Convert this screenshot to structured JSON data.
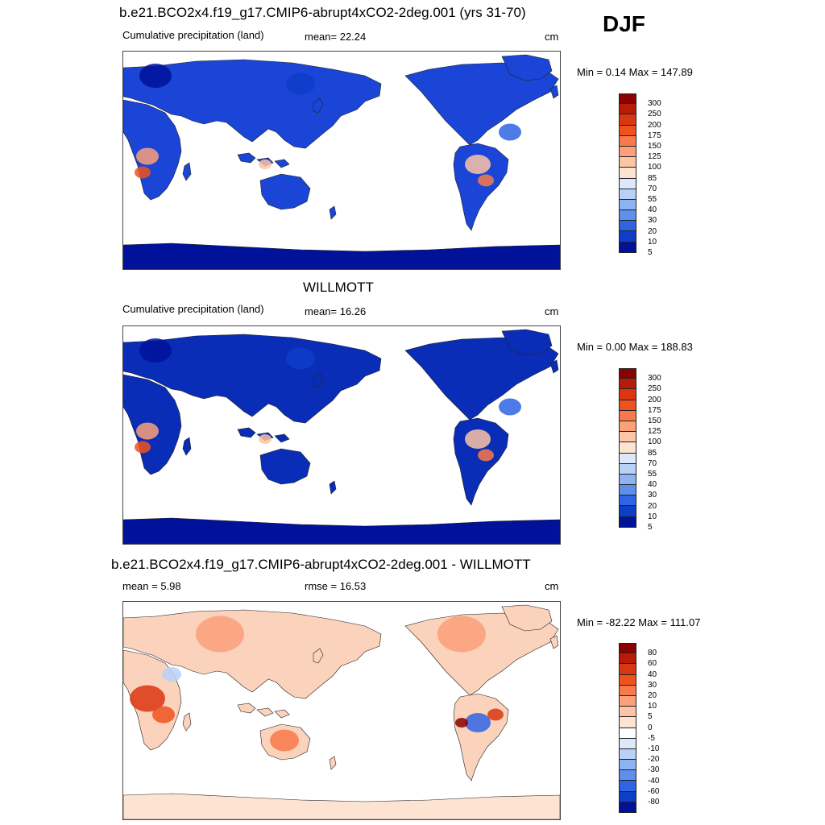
{
  "season": "DJF",
  "panels": [
    {
      "title": "b.e21.BCO2x4.f19_g17.CMIP6-abrupt4xCO2-2deg.001 (yrs 31-70)",
      "left_label": "Cumulative precipitation (land)",
      "center_label": "mean=  22.24",
      "units": "cm",
      "minmax": "Min =   0.14 Max = 147.89"
    },
    {
      "title": "WILLMOTT",
      "left_label": "Cumulative precipitation (land)",
      "center_label": "mean=  16.26",
      "units": "cm",
      "minmax": "Min =   0.00 Max = 188.83"
    },
    {
      "title": "b.e21.BCO2x4.f19_g17.CMIP6-abrupt4xCO2-2deg.001 - WILLMOTT",
      "left_label": "mean =   5.98",
      "center_label": "rmse =  16.53",
      "units": "cm",
      "minmax": "Min = -82.22 Max = 111.07"
    }
  ],
  "chart_data": [
    {
      "type": "heatmap",
      "title": "b.e21.BCO2x4.f19_g17.CMIP6-abrupt4xCO2-2deg.001 (yrs 31-70)",
      "mean": 22.24,
      "min": 0.14,
      "max": 147.89,
      "colorbar_levels": [
        "300",
        "250",
        "200",
        "175",
        "150",
        "125",
        "100",
        "85",
        "70",
        "55",
        "40",
        "30",
        "20",
        "10",
        "5"
      ],
      "colorbar_colors": [
        "#8b0000",
        "#b71c07",
        "#d93612",
        "#f0521e",
        "#f87a4a",
        "#fba079",
        "#fdc4a5",
        "#fde4d2",
        "#dde9fb",
        "#b9d1f8",
        "#8db4f2",
        "#5d90ec",
        "#2f64e3",
        "#0e3dc8",
        "#00129a"
      ]
    },
    {
      "type": "heatmap",
      "title": "WILLMOTT",
      "mean": 16.26,
      "min": 0.0,
      "max": 188.83,
      "colorbar_levels": [
        "300",
        "250",
        "200",
        "175",
        "150",
        "125",
        "100",
        "85",
        "70",
        "55",
        "40",
        "30",
        "20",
        "10",
        "5"
      ],
      "colorbar_colors": [
        "#8b0000",
        "#b71c07",
        "#d93612",
        "#f0521e",
        "#f87a4a",
        "#fba079",
        "#fdc4a5",
        "#fde4d2",
        "#dde9fb",
        "#b9d1f8",
        "#8db4f2",
        "#5d90ec",
        "#2f64e3",
        "#0e3dc8",
        "#00129a"
      ]
    },
    {
      "type": "heatmap",
      "title": "b.e21.BCO2x4.f19_g17.CMIP6-abrupt4xCO2-2deg.001 - WILLMOTT",
      "mean": 5.98,
      "rmse": 16.53,
      "min": -82.22,
      "max": 111.07,
      "colorbar_levels": [
        "80",
        "60",
        "40",
        "30",
        "20",
        "10",
        "5",
        "0",
        "-5",
        "-10",
        "-20",
        "-30",
        "-40",
        "-60",
        "-80"
      ],
      "colorbar_colors": [
        "#8b0000",
        "#b71c07",
        "#d93612",
        "#f0521e",
        "#f87a4a",
        "#fba079",
        "#fdc4a5",
        "#fde4d2",
        "#ffffff",
        "#dde9fb",
        "#b9d1f8",
        "#8db4f2",
        "#5d90ec",
        "#2f64e3",
        "#0e3dc8",
        "#00129a"
      ]
    }
  ],
  "styles": {
    "land_colors": {
      "panel0": "#1a45d6",
      "panel1": "#0a2db8",
      "panel2": "#fbd2bc"
    },
    "antarctica_color": "#00129a",
    "coast_color": "#222222"
  }
}
